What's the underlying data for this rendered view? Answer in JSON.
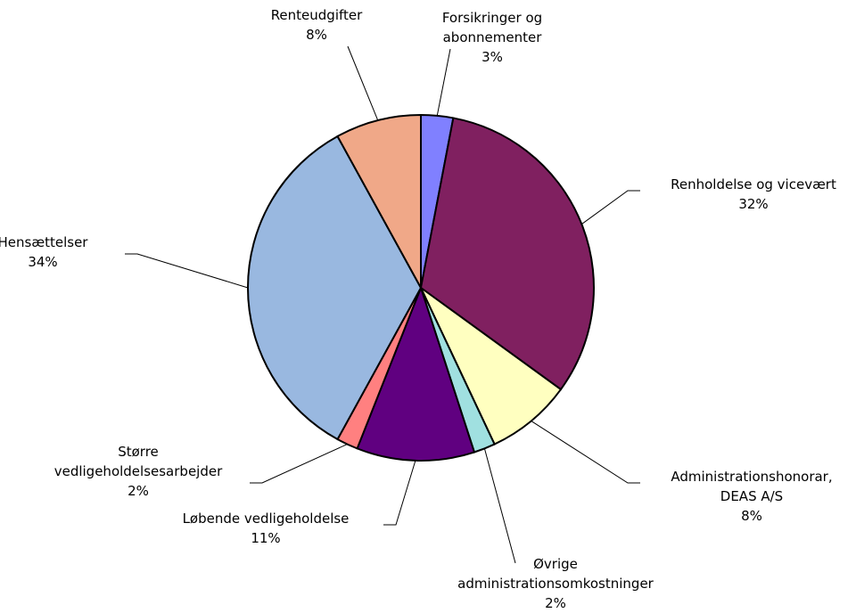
{
  "chart_data": {
    "type": "pie",
    "categories": [
      "Forsikringer og\nabonnementer",
      "Renholdelse og vicevært",
      "Administrationshonorar,\nDEAS A/S",
      "Øvrige\nadministrationsomkostninger",
      "Løbende vedligeholdelse",
      "Større\nvedligeholdelsesarbejder",
      "Hensættelser",
      "Renteudgifter"
    ],
    "values": [
      3,
      32,
      8,
      2,
      11,
      2,
      34,
      8
    ],
    "value_labels": [
      "3%",
      "32%",
      "8%",
      "2%",
      "11%",
      "2%",
      "34%",
      "8%"
    ],
    "colors": [
      "#8080ff",
      "#802060",
      "#ffffc0",
      "#a0e0e0",
      "#600080",
      "#ff8080",
      "#99b8e0",
      "#f0a888"
    ]
  }
}
